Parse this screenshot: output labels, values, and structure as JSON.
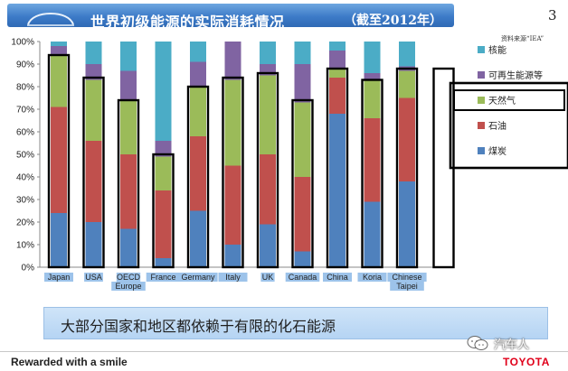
{
  "slide": {
    "title": "世界初级能源的实际消耗情况",
    "subtitle": "（截至2012年）",
    "number": "3",
    "source": "资料来源“IEA”",
    "message": "大部分国家和地区都依赖于有限的化石能源",
    "footer_slogan": "Rewarded with a smile",
    "footer_logo": "TOYOTA",
    "watermark": "汽车人"
  },
  "chart_data": {
    "type": "bar",
    "stacked": true,
    "categories": [
      "Japan",
      "USA",
      "OECD Europe",
      "France",
      "Germany",
      "Italy",
      "UK",
      "Canada",
      "China",
      "Koria",
      "Chinese Taipei"
    ],
    "category_lines": [
      [
        "Japan"
      ],
      [
        "USA"
      ],
      [
        "OECD",
        "Europe"
      ],
      [
        "France"
      ],
      [
        "Germany"
      ],
      [
        "Italy"
      ],
      [
        "UK"
      ],
      [
        "Canada"
      ],
      [
        "China"
      ],
      [
        "Koria"
      ],
      [
        "Chinese",
        "Taipei"
      ]
    ],
    "series": [
      {
        "name": "煤炭",
        "color": "#4f81bd",
        "values": [
          24,
          20,
          17,
          4,
          25,
          10,
          19,
          7,
          68,
          29,
          38
        ]
      },
      {
        "name": "石油",
        "color": "#c0504d",
        "values": [
          47,
          36,
          33,
          30,
          33,
          35,
          31,
          33,
          16,
          37,
          37
        ]
      },
      {
        "name": "天然气",
        "color": "#9bbb59",
        "values": [
          23,
          27,
          24,
          15,
          22,
          38,
          35,
          33,
          4,
          17,
          12
        ]
      },
      {
        "name": "可再生能源等",
        "color": "#8064a2",
        "values": [
          4,
          7,
          13,
          7,
          11,
          17,
          5,
          17,
          8,
          3,
          2
        ]
      },
      {
        "name": "核能",
        "color": "#4bacc6",
        "values": [
          2,
          10,
          13,
          44,
          9,
          0,
          10,
          10,
          4,
          14,
          11
        ]
      }
    ],
    "legend_order": [
      "核能",
      "可再生能源等",
      "天然气",
      "石油",
      "煤炭"
    ],
    "highlight_boxes": [
      94,
      84,
      74,
      50,
      80,
      84,
      86,
      74,
      88,
      83,
      88
    ],
    "ylim": [
      0,
      100
    ],
    "yticks": [
      "0%",
      "10%",
      "20%",
      "30%",
      "40%",
      "50%",
      "60%",
      "70%",
      "80%",
      "90%",
      "100%"
    ],
    "grid": false,
    "legend_position": "right"
  }
}
